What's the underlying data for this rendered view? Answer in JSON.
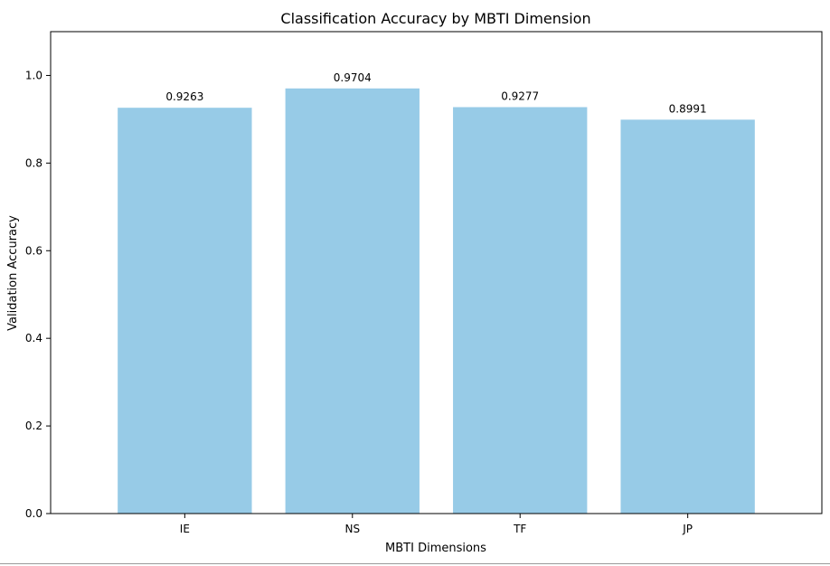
{
  "chart_data": {
    "type": "bar",
    "title": "Classification Accuracy by MBTI Dimension",
    "xlabel": "MBTI Dimensions",
    "ylabel": "Validation Accuracy",
    "categories": [
      "IE",
      "NS",
      "TF",
      "JP"
    ],
    "values": [
      0.9263,
      0.9704,
      0.9277,
      0.8991
    ],
    "value_labels": [
      "0.9263",
      "0.9704",
      "0.9277",
      "0.8991"
    ],
    "ylim": [
      0,
      1.1
    ],
    "yticks": [
      0.0,
      0.2,
      0.4,
      0.6,
      0.8,
      1.0
    ],
    "ytick_labels": [
      "0.0",
      "0.2",
      "0.4",
      "0.6",
      "0.8",
      "1.0"
    ],
    "bar_color": "#97cbe7",
    "grid": false,
    "legend": "none"
  }
}
